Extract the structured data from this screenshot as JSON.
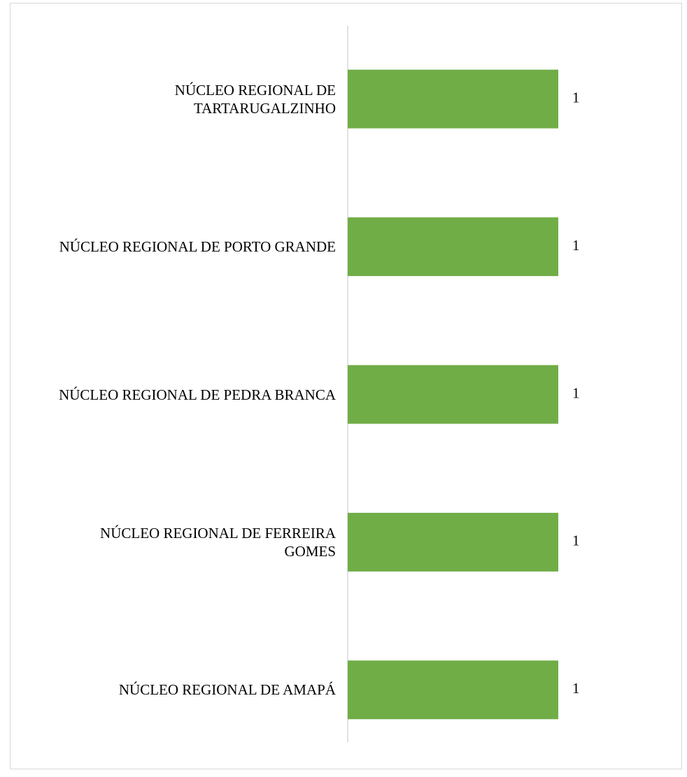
{
  "chart_data": {
    "type": "barh",
    "categories": [
      "NÚCLEO REGIONAL DE\nTARTARUGALZINHO",
      "NÚCLEO REGIONAL DE PORTO GRANDE",
      "NÚCLEO REGIONAL DE PEDRA BRANCA",
      "NÚCLEO REGIONAL DE FERREIRA\nGOMES",
      "NÚCLEO REGIONAL DE AMAPÁ"
    ],
    "values": [
      1,
      1,
      1,
      1,
      1
    ],
    "color": "#70ad47"
  }
}
